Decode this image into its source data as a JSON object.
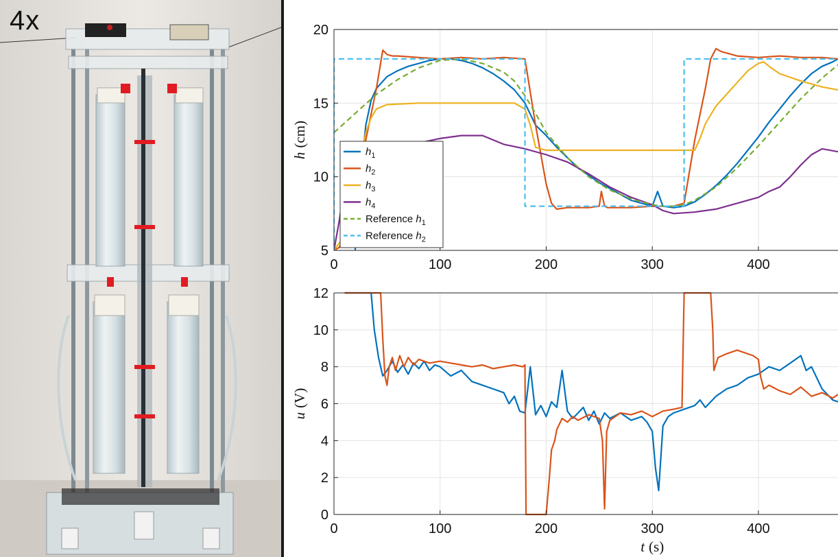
{
  "photo": {
    "speed_label": "4x"
  },
  "chart_data": [
    {
      "type": "line",
      "ylabel": "h (cm)",
      "xlabel": "",
      "xlim": [
        0,
        475
      ],
      "ylim": [
        5,
        20
      ],
      "xticks": [
        0,
        100,
        200,
        300,
        400
      ],
      "yticks": [
        5,
        10,
        15,
        20
      ],
      "grid": true,
      "legend": "bottom-left",
      "series": [
        {
          "name": "h1",
          "color": "#0072BD",
          "dash": false,
          "x": [
            20,
            25,
            30,
            35,
            40,
            50,
            60,
            70,
            80,
            90,
            100,
            110,
            120,
            130,
            140,
            150,
            160,
            170,
            180,
            190,
            200,
            210,
            220,
            230,
            240,
            250,
            260,
            270,
            280,
            290,
            300,
            305,
            310,
            320,
            330,
            340,
            350,
            360,
            370,
            380,
            390,
            400,
            410,
            420,
            430,
            440,
            450,
            460,
            470,
            475
          ],
          "y": [
            5.0,
            10.0,
            13.5,
            15.2,
            16.0,
            16.8,
            17.2,
            17.5,
            17.7,
            17.9,
            18.0,
            18.0,
            17.9,
            17.7,
            17.4,
            17.0,
            16.5,
            15.9,
            15.0,
            13.5,
            12.8,
            12.0,
            11.3,
            10.6,
            10.1,
            9.6,
            9.2,
            8.8,
            8.4,
            8.2,
            8.0,
            9.0,
            8.0,
            7.9,
            8.0,
            8.3,
            8.8,
            9.4,
            10.1,
            10.9,
            11.8,
            12.7,
            13.7,
            14.6,
            15.5,
            16.3,
            17.0,
            17.5,
            17.8,
            18.0
          ]
        },
        {
          "name": "h2",
          "color": "#D95319",
          "dash": false,
          "x": [
            0,
            5,
            10,
            20,
            30,
            40,
            46,
            50,
            55,
            60,
            80,
            100,
            120,
            140,
            160,
            180,
            190,
            200,
            205,
            210,
            220,
            230,
            240,
            250,
            252,
            255,
            258,
            260,
            280,
            300,
            320,
            330,
            340,
            350,
            355,
            360,
            365,
            380,
            400,
            420,
            440,
            460,
            475
          ],
          "y": [
            5.0,
            5.2,
            6.0,
            9.0,
            12.5,
            16.0,
            18.6,
            18.3,
            18.2,
            18.2,
            18.1,
            18.0,
            18.1,
            18.0,
            18.1,
            18.0,
            13.5,
            9.5,
            8.2,
            7.8,
            7.9,
            7.9,
            7.9,
            8.0,
            9.0,
            8.0,
            7.9,
            7.9,
            7.9,
            8.0,
            8.0,
            8.2,
            12.5,
            16.0,
            18.0,
            18.7,
            18.5,
            18.2,
            18.1,
            18.2,
            18.1,
            18.1,
            18.0
          ]
        },
        {
          "name": "h3",
          "color": "#EDB120",
          "dash": false,
          "x": [
            0,
            10,
            20,
            30,
            35,
            40,
            50,
            80,
            100,
            140,
            170,
            180,
            185,
            190,
            200,
            250,
            300,
            340,
            345,
            350,
            360,
            370,
            380,
            390,
            400,
            405,
            410,
            420,
            440,
            460,
            475
          ],
          "y": [
            5.0,
            6.0,
            9.5,
            13.0,
            14.0,
            14.6,
            14.9,
            15.0,
            15.0,
            15.0,
            15.0,
            14.6,
            13.5,
            12.0,
            11.8,
            11.8,
            11.8,
            11.8,
            12.6,
            13.6,
            14.8,
            15.6,
            16.4,
            17.2,
            17.7,
            17.8,
            17.5,
            17.0,
            16.5,
            16.1,
            15.9
          ]
        },
        {
          "name": "h4",
          "color": "#7E2F8E",
          "dash": false,
          "x": [
            0,
            5,
            10,
            20,
            30,
            40,
            60,
            80,
            100,
            120,
            140,
            150,
            160,
            180,
            200,
            220,
            240,
            260,
            280,
            300,
            310,
            320,
            340,
            360,
            380,
            400,
            410,
            420,
            430,
            440,
            450,
            460,
            475
          ],
          "y": [
            5.0,
            7.0,
            9.5,
            11.0,
            11.5,
            11.8,
            12.1,
            12.3,
            12.6,
            12.8,
            12.8,
            12.5,
            12.2,
            11.9,
            11.5,
            11.0,
            10.2,
            9.3,
            8.6,
            8.1,
            7.7,
            7.5,
            7.6,
            7.8,
            8.2,
            8.6,
            9.0,
            9.3,
            10.0,
            10.8,
            11.5,
            11.9,
            11.7
          ]
        },
        {
          "name": "Reference h1",
          "color": "#77AC30",
          "dash": true,
          "x": [
            0,
            20,
            40,
            60,
            80,
            100,
            120,
            140,
            160,
            170,
            180,
            190,
            200,
            220,
            240,
            260,
            280,
            300,
            310,
            320,
            330,
            340,
            360,
            380,
            400,
            420,
            440,
            460,
            475
          ],
          "y": [
            13.0,
            14.3,
            15.6,
            16.6,
            17.4,
            17.9,
            18.0,
            17.7,
            17.1,
            16.5,
            15.5,
            14.3,
            13.0,
            11.3,
            10.0,
            9.1,
            8.5,
            8.1,
            8.0,
            8.0,
            8.1,
            8.4,
            9.3,
            10.6,
            12.1,
            13.7,
            15.3,
            16.7,
            17.6
          ]
        },
        {
          "name": "Reference h2",
          "color": "#4DBEEE",
          "dash": true,
          "x": [
            0,
            0,
            180,
            180,
            330,
            330,
            475
          ],
          "y": [
            5.0,
            18.0,
            18.0,
            8.0,
            8.0,
            18.0,
            18.0
          ]
        }
      ]
    },
    {
      "type": "line",
      "ylabel": "u (V)",
      "xlabel": "t (s)",
      "xlim": [
        0,
        475
      ],
      "ylim": [
        0,
        12
      ],
      "xticks": [
        0,
        100,
        200,
        300,
        400
      ],
      "yticks": [
        0,
        2,
        4,
        6,
        8,
        10,
        12
      ],
      "grid": true,
      "series": [
        {
          "name": "",
          "color": "#0072BD",
          "dash": false,
          "x": [
            10,
            35,
            38,
            42,
            46,
            50,
            55,
            60,
            65,
            70,
            75,
            80,
            85,
            90,
            95,
            100,
            110,
            120,
            130,
            140,
            150,
            160,
            165,
            170,
            175,
            180,
            185,
            190,
            195,
            200,
            205,
            210,
            215,
            220,
            225,
            230,
            235,
            240,
            245,
            250,
            255,
            260,
            270,
            280,
            290,
            295,
            300,
            303,
            306,
            310,
            315,
            320,
            330,
            340,
            345,
            350,
            360,
            370,
            380,
            390,
            400,
            410,
            420,
            430,
            440,
            445,
            450,
            460,
            470,
            475
          ],
          "y": [
            12,
            12,
            10,
            8.5,
            7.5,
            7.8,
            8.3,
            7.7,
            8.1,
            7.6,
            8.2,
            7.9,
            8.3,
            7.8,
            8.1,
            8.0,
            7.5,
            7.8,
            7.2,
            7.0,
            6.8,
            6.6,
            6.0,
            6.4,
            5.6,
            5.5,
            8.0,
            5.4,
            5.9,
            5.3,
            6.1,
            5.8,
            7.8,
            5.6,
            5.2,
            5.5,
            5.8,
            5.1,
            5.6,
            4.9,
            5.5,
            5.2,
            5.5,
            5.1,
            5.3,
            5.0,
            4.5,
            2.5,
            1.3,
            4.8,
            5.3,
            5.5,
            5.7,
            5.9,
            6.2,
            5.8,
            6.4,
            6.8,
            7.0,
            7.4,
            7.6,
            8.0,
            7.8,
            8.2,
            8.6,
            7.8,
            8.0,
            6.8,
            6.2,
            6.1
          ]
        },
        {
          "name": "",
          "color": "#D95319",
          "dash": false,
          "x": [
            10,
            44,
            46,
            48,
            50,
            52,
            55,
            58,
            62,
            66,
            70,
            75,
            80,
            90,
            100,
            110,
            120,
            130,
            140,
            150,
            160,
            170,
            178,
            180,
            181,
            200,
            203,
            205,
            208,
            210,
            215,
            220,
            225,
            230,
            240,
            250,
            253,
            255,
            257,
            260,
            270,
            280,
            290,
            300,
            310,
            320,
            328,
            330,
            331,
            355,
            357,
            358,
            362,
            370,
            380,
            395,
            400,
            402,
            405,
            410,
            420,
            430,
            440,
            450,
            460,
            470,
            475
          ],
          "y": [
            12,
            12,
            9.5,
            7.5,
            7.0,
            8.0,
            8.5,
            7.8,
            8.6,
            8.0,
            8.5,
            8.1,
            8.4,
            8.2,
            8.3,
            8.2,
            8.1,
            8.0,
            8.1,
            7.9,
            8.0,
            8.1,
            8.0,
            8.1,
            0,
            0,
            2.0,
            3.5,
            4.0,
            4.6,
            5.2,
            5.0,
            5.3,
            5.1,
            5.4,
            5.2,
            4.0,
            0.3,
            4.5,
            5.1,
            5.5,
            5.4,
            5.6,
            5.3,
            5.6,
            5.7,
            5.8,
            12,
            12,
            12,
            10,
            7.8,
            8.5,
            8.7,
            8.9,
            8.6,
            8.4,
            7.5,
            6.8,
            7.0,
            6.7,
            6.5,
            6.9,
            6.4,
            6.6,
            6.3,
            6.5
          ]
        }
      ]
    }
  ]
}
